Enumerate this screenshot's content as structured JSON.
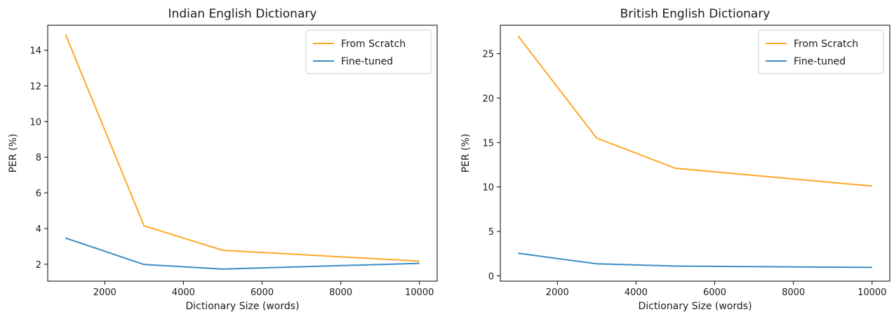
{
  "chart_data": [
    {
      "type": "line",
      "title": "Indian English Dictionary",
      "xlabel": "Dictionary Size (words)",
      "ylabel": "PER (%)",
      "x": [
        1000,
        3000,
        5000,
        10000
      ],
      "xlim": [
        550,
        10450
      ],
      "ylim": [
        1.05,
        15.4
      ],
      "xticks": [
        2000,
        4000,
        6000,
        8000,
        10000
      ],
      "yticks": [
        2,
        4,
        6,
        8,
        10,
        12,
        14
      ],
      "grid": false,
      "legend_position": "top-right",
      "series": [
        {
          "name": "From Scratch",
          "color": "#FFA726",
          "values": [
            14.9,
            4.15,
            2.78,
            2.17
          ]
        },
        {
          "name": "Fine-tuned",
          "color": "#3C8DC4",
          "values": [
            3.47,
            1.98,
            1.73,
            2.05
          ]
        }
      ]
    },
    {
      "type": "line",
      "title": "British English Dictionary",
      "xlabel": "Dictionary Size (words)",
      "ylabel": "PER (%)",
      "x": [
        1000,
        3000,
        5000,
        10000
      ],
      "xlim": [
        550,
        10450
      ],
      "ylim": [
        -0.6,
        28.2
      ],
      "xticks": [
        2000,
        4000,
        6000,
        8000,
        10000
      ],
      "yticks": [
        0,
        5,
        10,
        15,
        20,
        25
      ],
      "grid": false,
      "legend_position": "top-right",
      "series": [
        {
          "name": "From Scratch",
          "color": "#FFA726",
          "values": [
            27.0,
            15.5,
            12.1,
            10.1
          ]
        },
        {
          "name": "Fine-tuned",
          "color": "#3C8DC4",
          "values": [
            2.55,
            1.35,
            1.1,
            0.95
          ]
        }
      ]
    }
  ]
}
